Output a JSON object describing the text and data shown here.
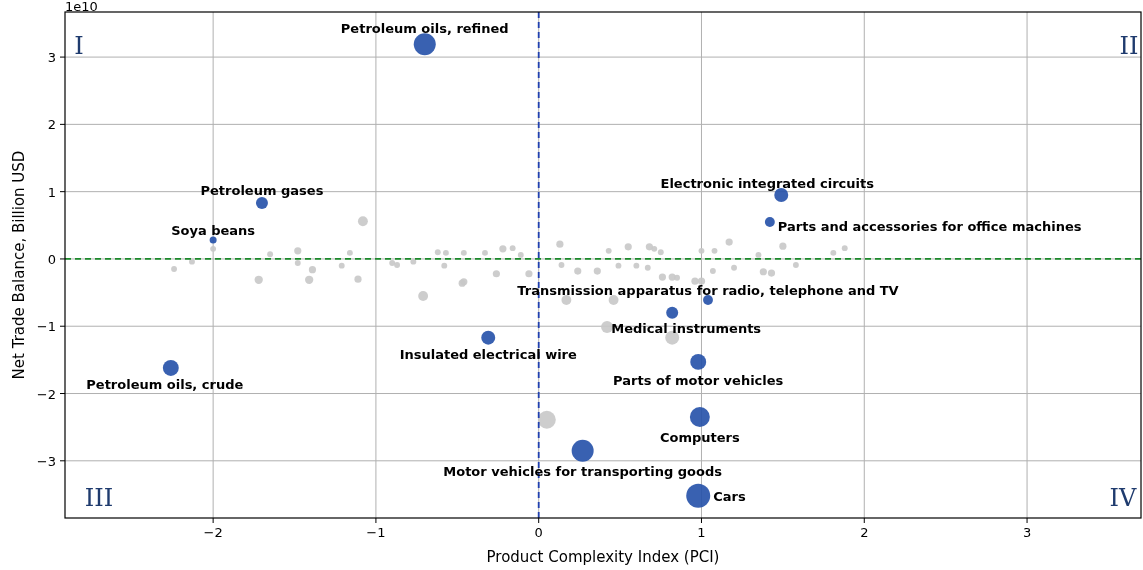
{
  "chart_data": {
    "type": "bubble",
    "xlabel": "Product Complexity Index (PCI)",
    "ylabel": "Net Trade Balance, Billion USD",
    "xlim": [
      -2.91,
      3.7
    ],
    "xticks": [
      {
        "value": -2,
        "label": "−2"
      },
      {
        "value": -1,
        "label": "−1"
      },
      0,
      1,
      2,
      3
    ],
    "ylim": [
      -3.85,
      3.67
    ],
    "yticks": [
      {
        "value": -3,
        "label": "−3"
      },
      {
        "value": -2,
        "label": "−2"
      },
      {
        "value": -1,
        "label": "−1"
      },
      0,
      1,
      2,
      3
    ],
    "grid": true,
    "series": [
      {
        "color": "#c8c8c8",
        "x": [
          0.05,
          0.82,
          0.42,
          -0.71,
          -1.08,
          0.17,
          0.46,
          -2.24,
          -2.0,
          -1.72,
          -1.41,
          -1.39,
          -1.11,
          -0.47,
          -1.48,
          -1.65,
          -1.16,
          -1.21,
          -0.62,
          -0.57,
          -0.58,
          -0.46,
          -0.9,
          -0.87,
          -1.48,
          -2.13,
          -0.77,
          0.13,
          -0.46,
          -0.26,
          -0.06,
          -0.22,
          -0.16,
          0.24,
          0.36,
          0.55,
          0.68,
          0.71,
          0.76,
          0.82,
          0.85,
          0.96,
          1.0,
          1.07,
          1.17,
          1.2,
          1.38,
          1.43,
          1.5,
          1.88,
          1.81,
          0.67,
          0.49,
          0.6,
          1.0,
          1.08,
          0.75,
          0.43,
          1.35,
          1.58,
          0.14,
          -0.33,
          -0.11
        ],
        "values": [
          -2.39,
          -1.17,
          -1.01,
          -0.55,
          0.56,
          -0.61,
          -0.61,
          -0.15,
          0.15,
          -0.31,
          -0.31,
          -0.16,
          -0.3,
          -0.36,
          0.12,
          0.07,
          0.09,
          -0.1,
          0.1,
          0.09,
          -0.1,
          0.09,
          -0.06,
          -0.09,
          -0.06,
          -0.04,
          -0.04,
          0.22,
          -0.34,
          -0.22,
          -0.22,
          0.15,
          0.16,
          -0.18,
          -0.18,
          0.18,
          0.18,
          0.15,
          -0.27,
          -0.27,
          -0.28,
          -0.33,
          -0.33,
          -0.18,
          0.25,
          -0.13,
          -0.19,
          -0.21,
          0.19,
          0.16,
          0.09,
          -0.13,
          -0.1,
          -0.1,
          0.12,
          0.12,
          0.1,
          0.12,
          0.06,
          -0.09,
          -0.09,
          0.09,
          0.06
        ],
        "sizes": [
          0.56,
          0.34,
          0.25,
          0.17,
          0.17,
          0.17,
          0.17,
          0.06,
          0.06,
          0.12,
          0.12,
          0.09,
          0.09,
          0.09,
          0.09,
          0.06,
          0.06,
          0.06,
          0.06,
          0.06,
          0.06,
          0.06,
          0.06,
          0.06,
          0.06,
          0.06,
          0.06,
          0.09,
          0.09,
          0.09,
          0.09,
          0.09,
          0.06,
          0.09,
          0.09,
          0.09,
          0.09,
          0.06,
          0.09,
          0.09,
          0.06,
          0.09,
          0.09,
          0.06,
          0.09,
          0.06,
          0.09,
          0.09,
          0.09,
          0.06,
          0.06,
          0.06,
          0.06,
          0.06,
          0.06,
          0.06,
          0.06,
          0.06,
          0.06,
          0.06,
          0.06,
          0.06,
          0.06
        ]
      },
      {
        "color": "#2450a8",
        "x": [
          -0.7,
          -1.7,
          -2.0,
          -2.26,
          -0.31,
          1.49,
          1.42,
          1.04,
          0.82,
          0.98,
          0.99,
          0.27,
          0.98
        ],
        "values": [
          3.19,
          0.83,
          0.28,
          -1.62,
          -1.17,
          0.95,
          0.55,
          -0.61,
          -0.8,
          -1.53,
          -2.35,
          -2.85,
          -3.52
        ],
        "sizes": [
          0.84,
          0.25,
          0.085,
          0.44,
          0.34,
          0.34,
          0.17,
          0.17,
          0.25,
          0.44,
          0.69,
          0.84,
          1
        ]
      }
    ],
    "ref_lines": [
      {
        "axis": "x",
        "value": 0,
        "color": "#2040b0",
        "line_style": "dashed"
      },
      {
        "axis": "y",
        "value": 0,
        "color": "#1a8a2a",
        "line_style": "dashed"
      }
    ],
    "annotations": [
      "1e10",
      "I",
      "II",
      "III",
      "IV",
      {
        "text": "Petroleum oils, refined",
        "x": -0.7,
        "y": 3.19
      },
      {
        "text": "Petroleum gases",
        "x": -1.7,
        "y": 0.83
      },
      {
        "text": "Soya beans",
        "x": -2.0,
        "y": 0.28
      },
      {
        "text": "Petroleum oils, crude",
        "x": -2.26,
        "y": -1.62
      },
      {
        "text": "Insulated electrical wire",
        "x": -0.31,
        "y": -1.17
      },
      {
        "text": "Electronic integrated circuits",
        "x": 1.49,
        "y": 0.95
      },
      {
        "text": "Parts and accessories for office machines",
        "x": 1.42,
        "y": 0.55
      },
      {
        "text": "Transmission apparatus for radio, telephone and TV",
        "x": 1.04,
        "y": -0.61
      },
      {
        "text": "Medical instruments",
        "x": 0.82,
        "y": -0.8
      },
      {
        "text": "Parts of motor vehicles",
        "x": 0.98,
        "y": -1.53
      },
      {
        "text": "Computers",
        "x": 0.99,
        "y": -2.35
      },
      {
        "text": "Motor vehicles for transporting goods",
        "x": 0.27,
        "y": -2.85
      },
      {
        "text": "Cars",
        "x": 0.98,
        "y": -3.52
      }
    ]
  }
}
